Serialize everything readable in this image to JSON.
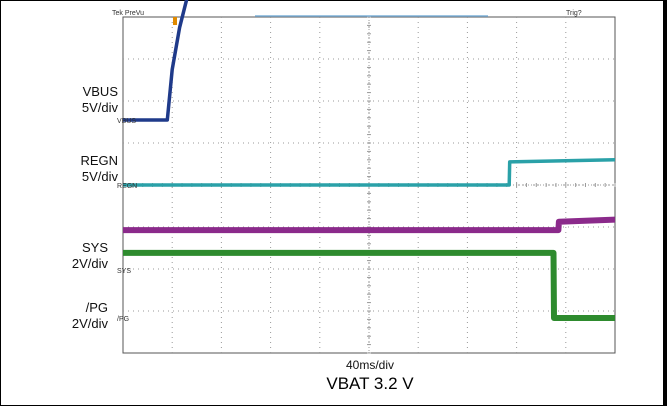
{
  "chart_data": {
    "type": "line",
    "title": "",
    "xlabel": "40ms/div",
    "caption": "VBAT 3.2 V",
    "header": {
      "left": "Tek PreVu",
      "right": "Trig?"
    },
    "x_divisions": 10,
    "y_divisions": 8,
    "grid": true,
    "series": [
      {
        "name": "VBUS",
        "scale": "5V/div",
        "ref_marker": "VBUS",
        "color": "#1f3a8a",
        "x": [
          0,
          0.9,
          1.0,
          1.15,
          1.3,
          1.5,
          1.8,
          2.2,
          10
        ],
        "y": [
          0,
          0,
          1.2,
          2.2,
          2.9,
          3.3,
          3.5,
          3.55,
          3.55
        ]
      },
      {
        "name": "REGN",
        "scale": "5V/div",
        "ref_marker": "REGN",
        "color": "#2aa1a8",
        "x": [
          0,
          7.85,
          7.86,
          10
        ],
        "y": [
          0,
          0,
          0.55,
          0.6
        ]
      },
      {
        "name": "SYS",
        "scale": "2V/div",
        "ref_marker": "SYS",
        "color": "#8b2a8b",
        "x": [
          0,
          8.85,
          8.86,
          10
        ],
        "y": [
          0.95,
          0.95,
          1.15,
          1.2
        ]
      },
      {
        "name": "/PG",
        "scale": "2V/div",
        "ref_marker": "/PG",
        "color": "#2e8b2e",
        "x": [
          0,
          8.75,
          8.76,
          10
        ],
        "y": [
          1.55,
          1.55,
          0,
          0
        ]
      }
    ]
  },
  "colors": {
    "grid": "#9a9a9a",
    "frame": "#555555",
    "trigger_bar": "#7fb2d9",
    "trigger_marker": "#e08a00"
  }
}
